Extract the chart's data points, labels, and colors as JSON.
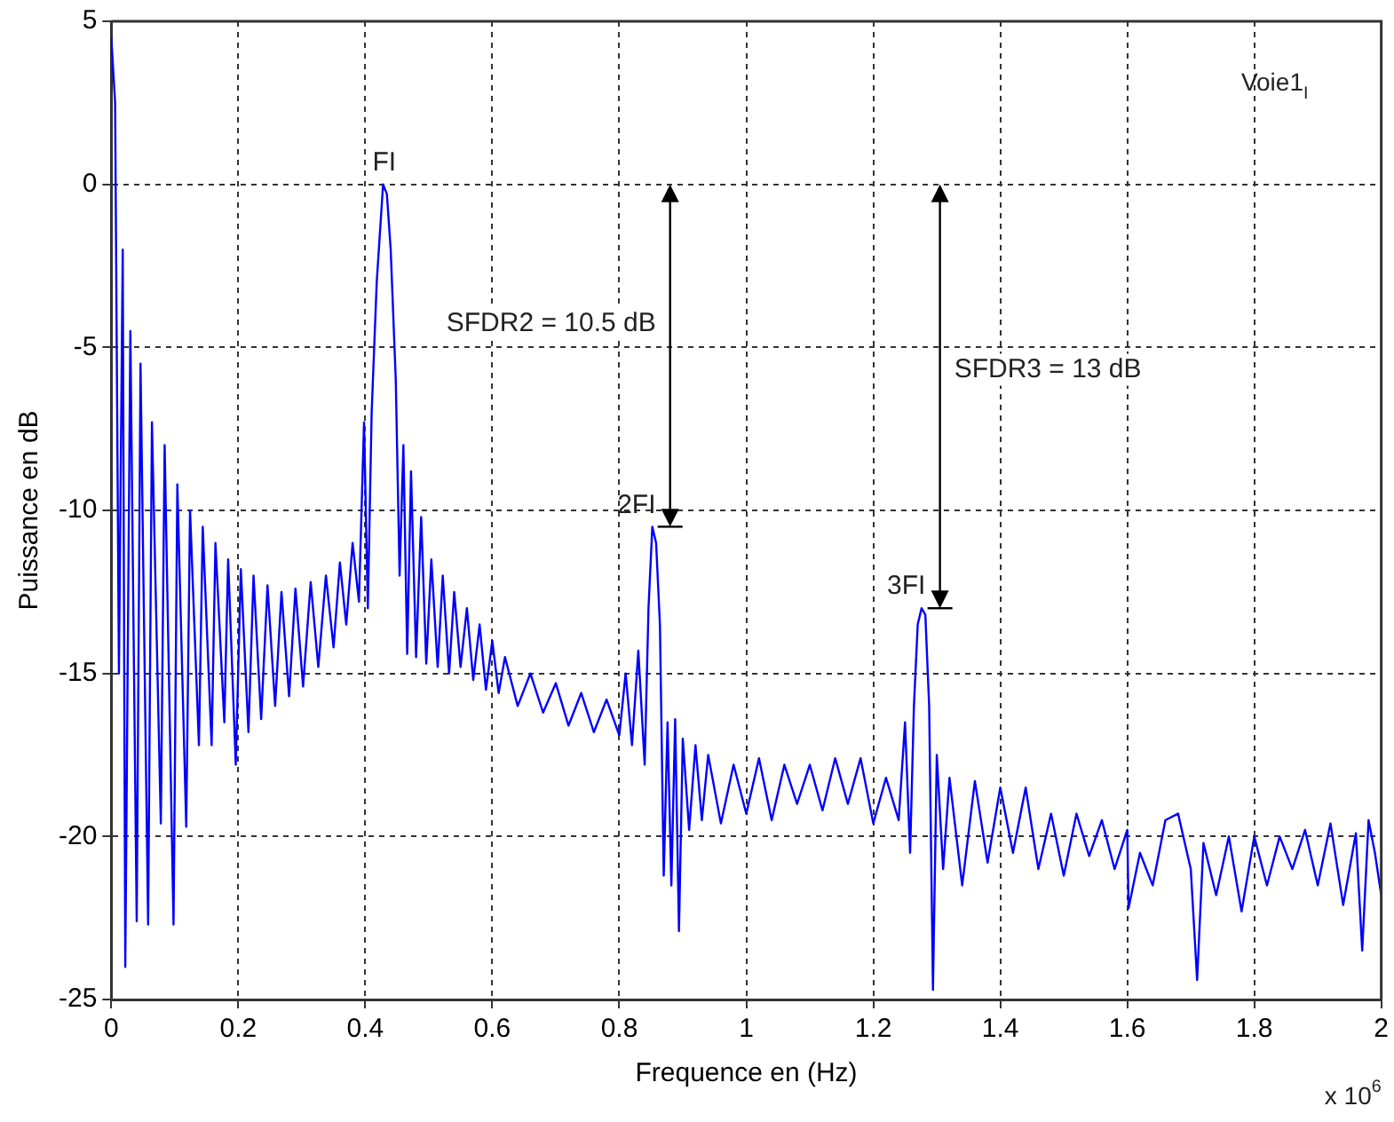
{
  "chart_data": {
    "type": "line",
    "xlabel": "Frequence en (Hz)",
    "ylabel": "Puissance en dB",
    "annotations": [
      {
        "text": "FI",
        "x": 0.43,
        "y": 0
      },
      {
        "text": "2FI",
        "x": 0.855,
        "y": -10.5
      },
      {
        "text": "3FI",
        "x": 1.28,
        "y": -13
      },
      "SFDR2 = 10.5 dB",
      "SFDR3 = 13 dB",
      "Voie1$_{I}$",
      "x 10$^{6}$"
    ],
    "x": [
      0,
      0.006,
      0.012,
      0.018,
      0.022,
      0.03,
      0.04,
      0.046,
      0.058,
      0.064,
      0.078,
      0.084,
      0.098,
      0.104,
      0.118,
      0.124,
      0.138,
      0.144,
      0.158,
      0.164,
      0.178,
      0.184,
      0.196,
      0.204,
      0.216,
      0.224,
      0.236,
      0.246,
      0.258,
      0.268,
      0.28,
      0.29,
      0.302,
      0.314,
      0.326,
      0.338,
      0.35,
      0.36,
      0.37,
      0.38,
      0.39,
      0.398,
      0.404,
      0.41,
      0.418,
      0.428,
      0.434,
      0.44,
      0.448,
      0.454,
      0.46,
      0.466,
      0.472,
      0.48,
      0.488,
      0.496,
      0.504,
      0.514,
      0.522,
      0.532,
      0.54,
      0.55,
      0.56,
      0.57,
      0.58,
      0.59,
      0.6,
      0.61,
      0.62,
      0.64,
      0.66,
      0.68,
      0.7,
      0.72,
      0.74,
      0.76,
      0.78,
      0.8,
      0.81,
      0.82,
      0.83,
      0.84,
      0.846,
      0.852,
      0.858,
      0.864,
      0.87,
      0.876,
      0.882,
      0.888,
      0.894,
      0.9,
      0.91,
      0.92,
      0.93,
      0.94,
      0.96,
      0.98,
      1.0,
      1.02,
      1.04,
      1.06,
      1.08,
      1.1,
      1.12,
      1.14,
      1.16,
      1.18,
      1.2,
      1.22,
      1.24,
      1.25,
      1.258,
      1.264,
      1.27,
      1.276,
      1.282,
      1.288,
      1.294,
      1.3,
      1.31,
      1.32,
      1.34,
      1.36,
      1.38,
      1.4,
      1.42,
      1.44,
      1.46,
      1.48,
      1.5,
      1.52,
      1.54,
      1.56,
      1.58,
      1.6,
      1.602,
      1.62,
      1.64,
      1.66,
      1.68,
      1.7,
      1.71,
      1.72,
      1.74,
      1.76,
      1.78,
      1.8,
      1.82,
      1.84,
      1.86,
      1.88,
      1.9,
      1.92,
      1.94,
      1.96,
      1.97,
      1.98,
      1.99,
      2.0
    ],
    "series": [
      {
        "color": "#0000ff",
        "values": [
          4.5,
          2.5,
          -15,
          -2,
          -24,
          -4.5,
          -22.6,
          -5.5,
          -22.7,
          -7.3,
          -19.6,
          -8,
          -22.7,
          -9.2,
          -19.7,
          -10,
          -17.2,
          -10.5,
          -17.2,
          -11,
          -16.5,
          -11.5,
          -17.8,
          -11.8,
          -16.8,
          -12,
          -16.4,
          -12.3,
          -16,
          -12.5,
          -15.7,
          -12.4,
          -15.4,
          -12.2,
          -14.8,
          -12,
          -14.2,
          -11.6,
          -13.5,
          -11,
          -12.8,
          -7.3,
          -13,
          -7,
          -3,
          0,
          -0.3,
          -2,
          -6,
          -12,
          -8,
          -14.4,
          -8.8,
          -14.5,
          -10.2,
          -14.7,
          -11.5,
          -14.8,
          -12,
          -15,
          -12.5,
          -14.8,
          -13,
          -15.2,
          -13.5,
          -15.5,
          -14,
          -15.6,
          -14.5,
          -16,
          -15,
          -16.2,
          -15.3,
          -16.6,
          -15.6,
          -16.8,
          -15.8,
          -16.9,
          -15,
          -17.2,
          -14.3,
          -17.8,
          -13,
          -10.5,
          -11,
          -13.5,
          -21.2,
          -16.5,
          -21.5,
          -16.4,
          -22.9,
          -17,
          -19.8,
          -17.2,
          -19.5,
          -17.5,
          -19.6,
          -17.8,
          -19.3,
          -17.6,
          -19.5,
          -17.8,
          -19,
          -17.8,
          -19.2,
          -17.6,
          -19,
          -17.6,
          -19.6,
          -18.2,
          -19.5,
          -16.5,
          -20.5,
          -16,
          -13.5,
          -13,
          -13.2,
          -16,
          -24.7,
          -17.5,
          -21,
          -18.2,
          -21.5,
          -18.3,
          -20.8,
          -18.5,
          -20.5,
          -18.5,
          -21,
          -19.3,
          -21.2,
          -19.3,
          -20.6,
          -19.5,
          -21,
          -19.8,
          -22.2,
          -20.5,
          -21.5,
          -19.5,
          -19.3,
          -21,
          -24.4,
          -20.2,
          -21.8,
          -20,
          -22.3,
          -20,
          -21.5,
          -20,
          -21,
          -19.8,
          -21.5,
          -19.6,
          -22.1,
          -19.9,
          -23.5,
          -19.5,
          -20.5,
          -21.8
        ]
      }
    ],
    "xlim": [
      0,
      2
    ],
    "xticks": [
      0,
      0.2,
      0.4,
      0.6,
      0.8,
      1,
      1.2,
      1.4,
      1.6,
      1.8,
      2
    ],
    "ylim": [
      -25,
      5
    ],
    "yticks": [
      -25,
      -20,
      -15,
      -10,
      -5,
      0,
      5
    ],
    "grid": true,
    "legend": false,
    "marker": "none",
    "line_style": "solid"
  }
}
